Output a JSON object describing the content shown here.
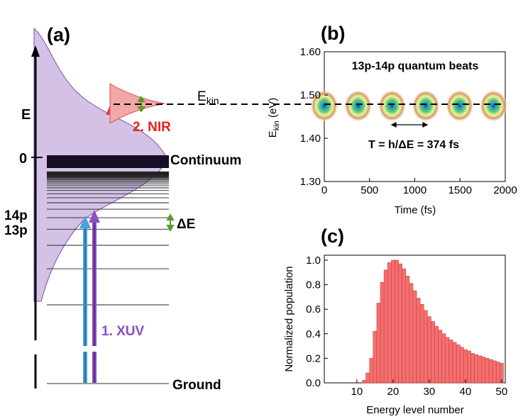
{
  "panel_a": {
    "label": "(a)",
    "energy_axis_label": "E",
    "zero_label": "0",
    "continuum_label": "Continuum",
    "level_14p_label": "14p",
    "level_13p_label": "13p",
    "delta_e_label": "ΔE",
    "xuv_label": "1. XUV",
    "nir_label": "2. NIR",
    "ground_label": "Ground",
    "ekin_label_main": "E",
    "ekin_label_sub": "kin",
    "colors": {
      "purple_fill": "#cbb7e0",
      "purple_edge": "#7b4fb0",
      "continuum_block": "#180d24",
      "xuv_blue": "#4aa3dc",
      "xuv_purple": "#8a4fc0",
      "nir_red": "#e83a3a",
      "nir_label_red": "#e8201e",
      "xuv_label_purple": "#8a4fc0",
      "delta_green": "#5a9a2a"
    }
  },
  "panel_b": {
    "label": "(b)",
    "title": "13p-14p quantum beats",
    "xlabel": "Time (fs)",
    "ylabel_main": "E",
    "ylabel_sub": "kin",
    "ylabel_unit": " (eV)",
    "period_annotation": "T = h/ΔE = 374 fs",
    "x_ticks": [
      "0",
      "500",
      "1000",
      "1500",
      "2000"
    ],
    "y_ticks": [
      "1.30",
      "1.40",
      "1.50",
      "1.60"
    ],
    "beat_times_fs": [
      0,
      374,
      748,
      1122,
      1496,
      1870
    ],
    "beat_energy_ev": 1.475
  },
  "panel_c": {
    "label": "(c)",
    "xlabel": "Energy level number",
    "ylabel": "Normalized population",
    "x_ticks": [
      "10",
      "20",
      "30",
      "40",
      "50"
    ],
    "y_ticks": [
      "0.0",
      "0.2",
      "0.4",
      "0.6",
      "0.8",
      "1.0"
    ],
    "bar_color": "#f47070",
    "bar_edge": "#c83a3a"
  },
  "chart_data": [
    {
      "type": "heatmap",
      "title": "13p-14p quantum beats",
      "xlabel": "Time (fs)",
      "ylabel": "Ekin (eV)",
      "xlim": [
        0,
        2000
      ],
      "ylim": [
        1.3,
        1.6
      ],
      "peaks": {
        "x": [
          0,
          374,
          748,
          1122,
          1496,
          1870
        ],
        "y": [
          1.475,
          1.475,
          1.475,
          1.475,
          1.475,
          1.475
        ]
      },
      "period_fs": 374,
      "reference_line_ev": 1.475
    },
    {
      "type": "bar",
      "title": "",
      "xlabel": "Energy level number",
      "ylabel": "Normalized population",
      "xlim": [
        1,
        51
      ],
      "ylim": [
        0,
        1.0
      ],
      "categories": [
        1,
        2,
        3,
        4,
        5,
        6,
        7,
        8,
        9,
        10,
        11,
        12,
        13,
        14,
        15,
        16,
        17,
        18,
        19,
        20,
        21,
        22,
        23,
        24,
        25,
        26,
        27,
        28,
        29,
        30,
        31,
        32,
        33,
        34,
        35,
        36,
        37,
        38,
        39,
        40,
        41,
        42,
        43,
        44,
        45,
        46,
        47,
        48,
        49,
        50
      ],
      "values": [
        0,
        0,
        0,
        0,
        0,
        0,
        0,
        0,
        0,
        0,
        0,
        0.02,
        0.08,
        0.2,
        0.42,
        0.65,
        0.82,
        0.92,
        0.98,
        1.0,
        1.0,
        0.97,
        0.93,
        0.87,
        0.81,
        0.75,
        0.69,
        0.64,
        0.59,
        0.54,
        0.5,
        0.46,
        0.43,
        0.4,
        0.37,
        0.35,
        0.33,
        0.31,
        0.29,
        0.27,
        0.26,
        0.24,
        0.23,
        0.22,
        0.21,
        0.2,
        0.19,
        0.18,
        0.17,
        0.16
      ]
    }
  ]
}
